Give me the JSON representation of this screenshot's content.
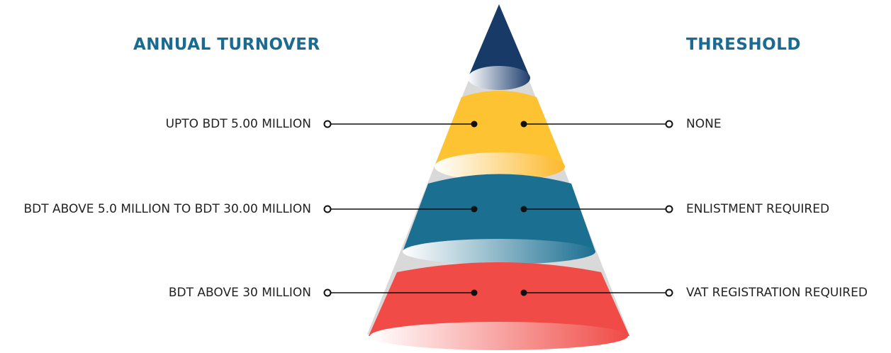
{
  "headings": {
    "left": "ANNUAL TURNOVER",
    "right": "THRESHOLD"
  },
  "tiers": [
    {
      "left": "UPTO BDT 5.00 MILLION",
      "right": "NONE"
    },
    {
      "left": "BDT ABOVE 5.0 MILLION TO BDT 30.00 MILLION",
      "right": "ENLISTMENT REQUIRED"
    },
    {
      "left": "BDT ABOVE 30 MILLION",
      "right": "VAT REGISTRATION REQUIRED"
    }
  ],
  "colors": {
    "tip": "#173a66",
    "tier1": "#fdc333",
    "tier2": "#1b6f91",
    "tier3": "#f04b46",
    "gap": "#d9d9d9",
    "heading": "#1b6a92",
    "text": "#222222"
  }
}
